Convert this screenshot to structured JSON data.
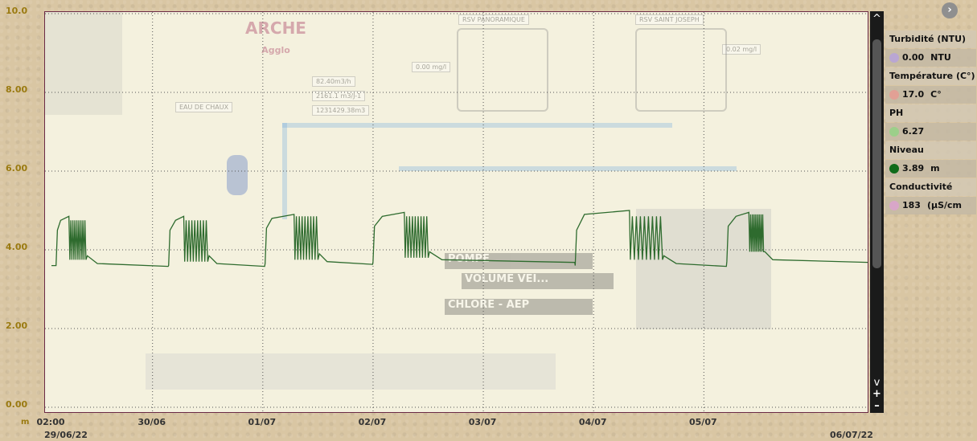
{
  "chart_data": {
    "type": "line",
    "ylim": [
      0,
      10
    ],
    "yticks": [
      "10.0",
      "8.00",
      "6.00",
      "4.00",
      "2.00",
      "0.00"
    ],
    "y_unit": "m",
    "x_range": [
      "2022-06-29 02:00",
      "2022-07-06 12:00"
    ],
    "xticks": [
      {
        "label": "02:00",
        "sub": "29/06/22",
        "at": "2022-06-29 02:00"
      },
      {
        "label": "30/06",
        "at": "2022-06-30 00:00"
      },
      {
        "label": "01/07",
        "at": "2022-07-01 00:00"
      },
      {
        "label": "02/07",
        "at": "2022-07-02 00:00"
      },
      {
        "label": "03/07",
        "at": "2022-07-03 00:00"
      },
      {
        "label": "04/07",
        "at": "2022-07-04 00:00"
      },
      {
        "label": "05/07",
        "at": "2022-07-05 00:00"
      },
      {
        "label": "",
        "sub": "06/07/22",
        "at": "2022-07-06 12:00"
      }
    ],
    "grid": true,
    "series": [
      {
        "name": "Niveau",
        "color": "#2e6b2e",
        "daily_cycles": [
          {
            "day": "2022-06-29",
            "base": 3.6,
            "rise_start": "03:00",
            "plateau_start": "04:00",
            "plateau": 4.85,
            "osc_start": "06:00",
            "osc_end": "09:30",
            "osc_low": 3.75,
            "osc_high": 4.75,
            "drop_end": "12:00"
          },
          {
            "day": "2022-06-30",
            "base": 3.6,
            "rise_start": "03:30",
            "plateau_start": "05:00",
            "plateau": 4.85,
            "osc_start": "07:00",
            "osc_end": "12:00",
            "osc_low": 3.7,
            "osc_high": 4.75,
            "drop_end": "14:00"
          },
          {
            "day": "2022-07-01",
            "base": 3.65,
            "rise_start": "00:30",
            "plateau_start": "02:00",
            "plateau": 4.9,
            "osc_start": "07:00",
            "osc_end": "12:00",
            "osc_low": 3.75,
            "osc_high": 4.85,
            "drop_end": "14:00"
          },
          {
            "day": "2022-07-02",
            "base": 3.7,
            "rise_start": "00:00",
            "plateau_start": "02:00",
            "plateau": 4.95,
            "osc_start": "07:00",
            "osc_end": "12:00",
            "osc_low": 3.8,
            "osc_high": 4.85,
            "drop_end": "15:00"
          },
          {
            "day": "2022-07-03",
            "base": 3.6,
            "rise_start": "20:00",
            "plateau_start": "22:00",
            "plateau": 5.0,
            "osc_start": "08:00",
            "osc_end": "15:00",
            "osc_low": 3.75,
            "osc_high": 4.85,
            "drop_end": "18:00"
          },
          {
            "day": "2022-07-05",
            "base": 3.7,
            "rise_start": "05:00",
            "plateau_start": "07:00",
            "plateau": 4.95,
            "osc_start": "10:00",
            "osc_end": "13:00",
            "osc_low": 3.95,
            "osc_high": 4.9,
            "drop_end": "15:00"
          }
        ]
      }
    ]
  },
  "legend": [
    {
      "title": "Turbidité (NTU)",
      "value": "0.00",
      "unit": "NTU",
      "color": "#b9a6d3"
    },
    {
      "title": "Température (C°)",
      "value": "17.0",
      "unit": "C°",
      "color": "#e2a095"
    },
    {
      "title": "PH",
      "value": "6.27",
      "unit": "",
      "color": "#9ccf8a"
    },
    {
      "title": "Niveau",
      "value": "3.89",
      "unit": "m",
      "color": "#0f6b1a"
    },
    {
      "title": "Conductivité",
      "value": "183",
      "unit": "(µS/cm",
      "color": "#d8a6c8"
    }
  ],
  "background_labels": {
    "logo": "ARCHE",
    "logo_sub": "Agglo",
    "eau_de_chaux": "EAU DE CHAUX",
    "rsv_panoramique": "RSV PANORAMIQUE",
    "rsv_saint_joseph": "RSV SAINT JOSEPH",
    "mg1": "0.00 mg/l",
    "mg2": "0.02 mg/l",
    "flow1": "82.40m3/h",
    "flow2": "2161.1 m3/J-1",
    "flow3": "1231429.38m3",
    "pompe": "POMPE",
    "volume": "VOLUME VEI...",
    "chlore": "CHLORE - AEP"
  },
  "scroll_labels": {
    "up": "^",
    "down": "v",
    "plus": "+",
    "minus": "–"
  },
  "nav_icon": "›"
}
